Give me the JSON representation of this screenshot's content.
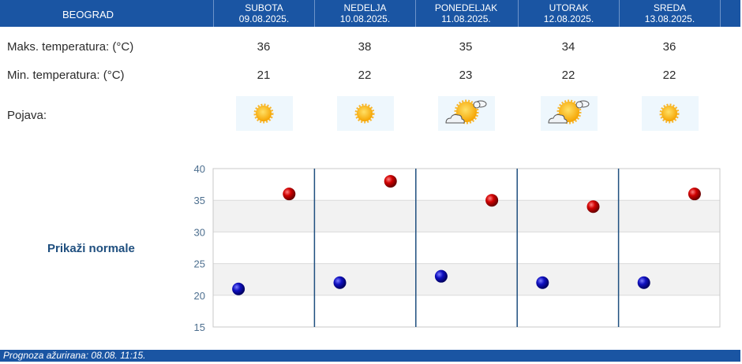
{
  "header": {
    "city": "BEOGRAD"
  },
  "days": [
    {
      "name": "SUBOTA",
      "date": "09.08.2025.",
      "max": "36",
      "min": "21",
      "icon": "sun-icon"
    },
    {
      "name": "NEDELJA",
      "date": "10.08.2025.",
      "max": "38",
      "min": "22",
      "icon": "sun-icon"
    },
    {
      "name": "PONEDELJAK",
      "date": "11.08.2025.",
      "max": "35",
      "min": "23",
      "icon": "sun-cloud-icon"
    },
    {
      "name": "UTORAK",
      "date": "12.08.2025.",
      "max": "34",
      "min": "22",
      "icon": "sun-cloud-icon"
    },
    {
      "name": "SREDA",
      "date": "13.08.2025.",
      "max": "36",
      "min": "22",
      "icon": "sun-icon"
    }
  ],
  "labels": {
    "max": "Maks. temperatura: (°C)",
    "min": "Min. temperatura: (°C)",
    "phenomenon": "Pojava:",
    "normals": "Prikaži normale"
  },
  "footer": {
    "updated": "Prognoza ažurirana:  08.08. 11:15."
  },
  "colors": {
    "header": "#1a55a3",
    "max_marker": "#c00000",
    "min_marker": "#0a0aa8",
    "axis_text": "#4d6f8f"
  },
  "chart_data": {
    "type": "scatter",
    "categories": [
      "SUBOTA",
      "NEDELJA",
      "PONEDELJAK",
      "UTORAK",
      "SREDA"
    ],
    "series": [
      {
        "values": [
          36,
          38,
          35,
          34,
          36
        ]
      },
      {
        "values": [
          21,
          22,
          23,
          22,
          22
        ]
      }
    ],
    "yticks": [
      "40",
      "35",
      "30",
      "25",
      "20",
      "15"
    ],
    "ylim": [
      15,
      40
    ],
    "grid": true
  }
}
